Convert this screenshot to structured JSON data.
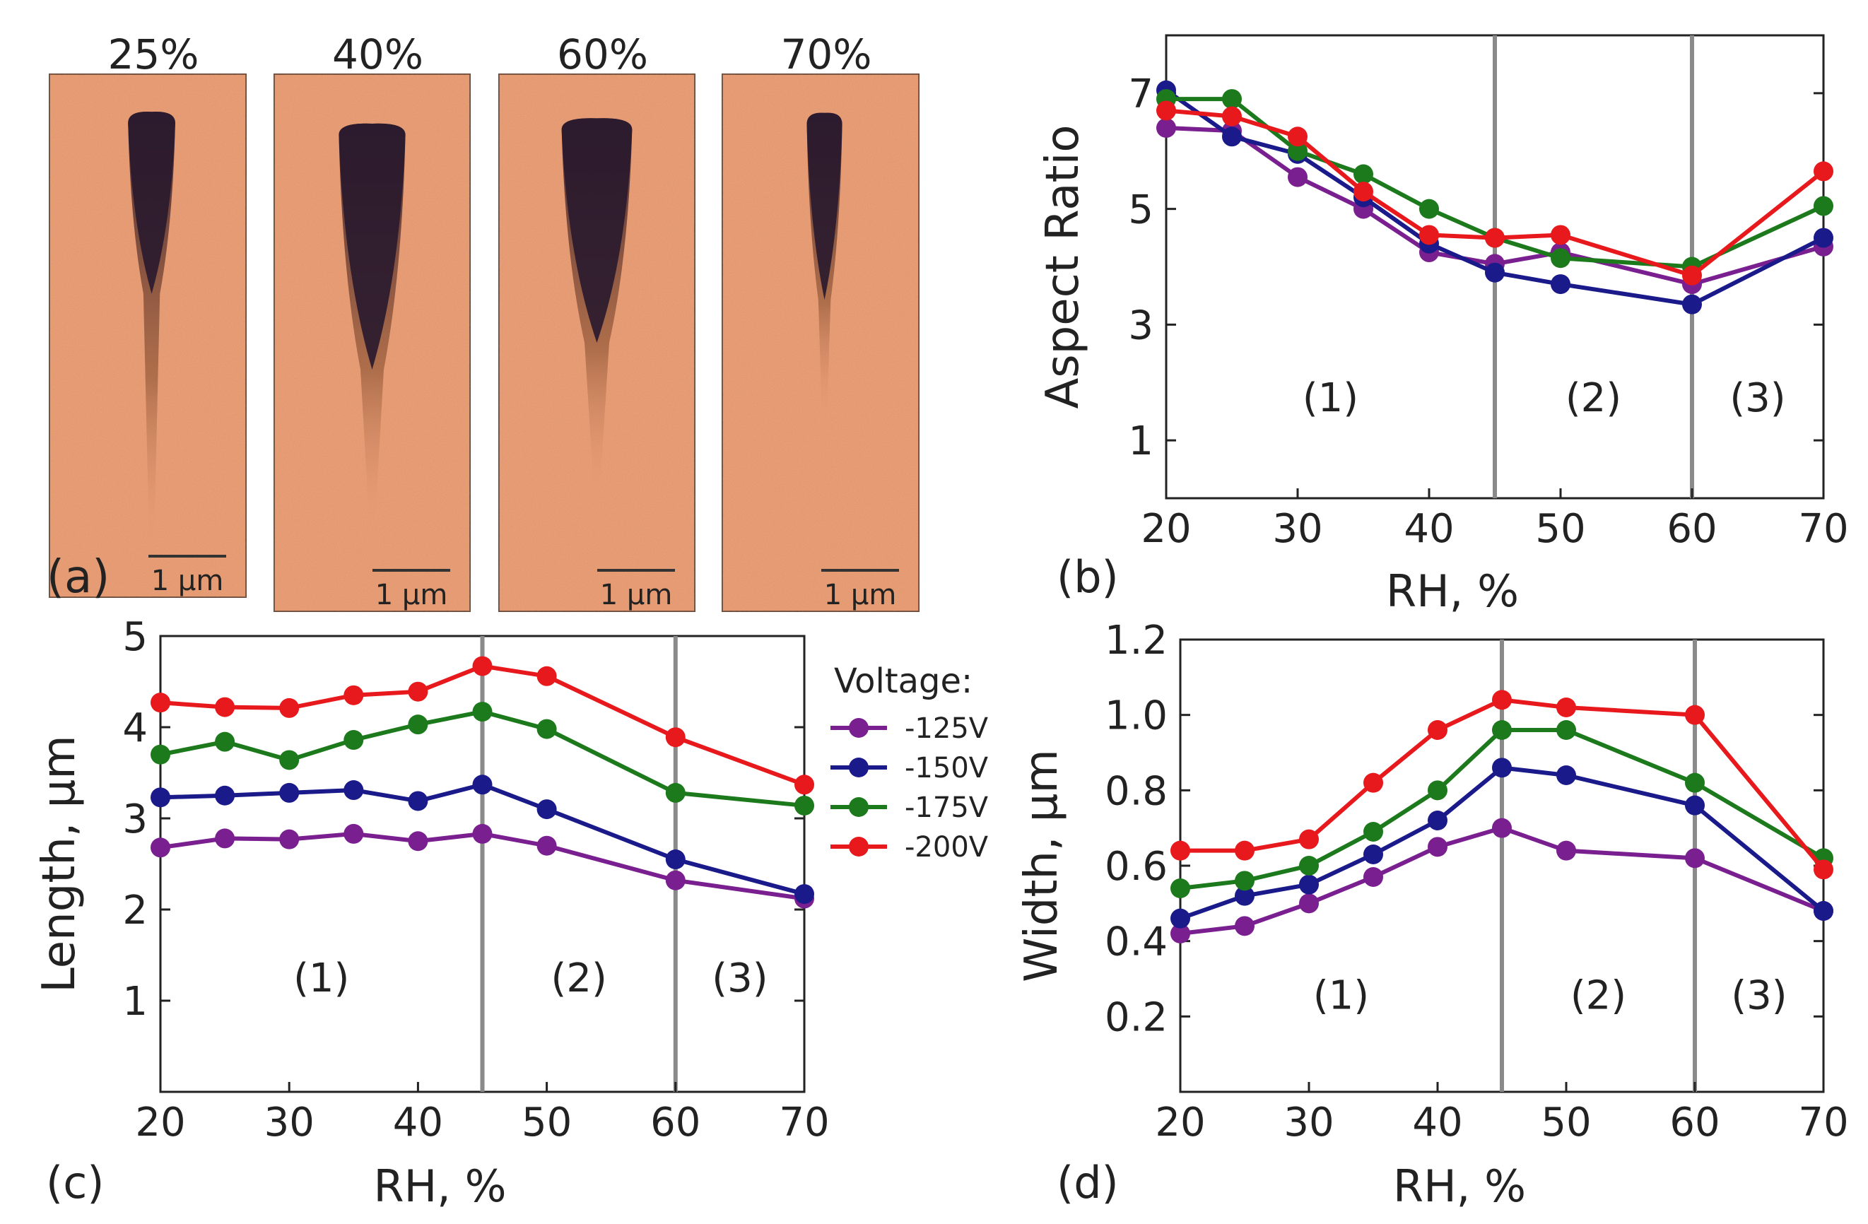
{
  "panel_a": {
    "label": "(a)",
    "scale_bar": "1 μm",
    "images": [
      {
        "title": "25%"
      },
      {
        "title": "40%"
      },
      {
        "title": "60%"
      },
      {
        "title": "70%"
      }
    ]
  },
  "colors": {
    "-125V": "#7a1f8f",
    "-150V": "#1a1a8a",
    "-175V": "#1c7a1c",
    "-200V": "#e8191c",
    "divider": "#8a8a8a",
    "afm_background": "#f2a27a",
    "afm_domain": "#2a1a2e"
  },
  "legend": {
    "title": "Voltage:",
    "entries": [
      "-125V",
      "-150V",
      "-175V",
      "-200V"
    ]
  },
  "chart_data": [
    {
      "id": "b",
      "type": "line",
      "panel_label": "(b)",
      "xlabel": "RH, %",
      "ylabel": "Aspect Ratio",
      "xlim": [
        20,
        70
      ],
      "ylim": [
        0,
        8
      ],
      "xticks": [
        20,
        30,
        40,
        50,
        60,
        70
      ],
      "yticks": [
        1,
        3,
        5,
        7
      ],
      "dividers": [
        45,
        60
      ],
      "regions": [
        {
          "label": "(1)",
          "x": 32.5,
          "y": 1.5
        },
        {
          "label": "(2)",
          "x": 52.5,
          "y": 1.5
        },
        {
          "label": "(3)",
          "x": 65,
          "y": 1.5
        }
      ],
      "x": [
        20,
        25,
        30,
        35,
        40,
        45,
        50,
        60,
        70
      ],
      "series": [
        {
          "name": "-125V",
          "values": [
            6.4,
            6.35,
            5.55,
            5.0,
            4.25,
            4.05,
            4.25,
            3.7,
            4.35
          ]
        },
        {
          "name": "-150V",
          "values": [
            7.05,
            6.25,
            5.95,
            5.2,
            4.4,
            3.9,
            3.7,
            3.35,
            4.5
          ]
        },
        {
          "name": "-175V",
          "values": [
            6.9,
            6.9,
            6.0,
            5.6,
            5.0,
            4.5,
            4.15,
            4.0,
            5.05
          ]
        },
        {
          "name": "-200V",
          "values": [
            6.7,
            6.6,
            6.25,
            5.3,
            4.55,
            4.5,
            4.55,
            3.85,
            5.65
          ]
        }
      ]
    },
    {
      "id": "c",
      "type": "line",
      "panel_label": "(c)",
      "xlabel": "RH, %",
      "ylabel": "Length, μm",
      "xlim": [
        20,
        70
      ],
      "ylim": [
        0,
        5
      ],
      "xticks": [
        20,
        30,
        40,
        50,
        60,
        70
      ],
      "yticks": [
        1,
        2,
        3,
        4,
        5
      ],
      "dividers": [
        45,
        60
      ],
      "regions": [
        {
          "label": "(1)",
          "x": 32.5,
          "y": 1.1
        },
        {
          "label": "(2)",
          "x": 52.5,
          "y": 1.1
        },
        {
          "label": "(3)",
          "x": 65,
          "y": 1.1
        }
      ],
      "x": [
        20,
        25,
        30,
        35,
        40,
        45,
        50,
        60,
        70
      ],
      "series": [
        {
          "name": "-125V",
          "values": [
            2.68,
            2.78,
            2.77,
            2.83,
            2.75,
            2.83,
            2.7,
            2.32,
            2.12
          ]
        },
        {
          "name": "-150V",
          "values": [
            3.23,
            3.25,
            3.28,
            3.31,
            3.19,
            3.37,
            3.1,
            2.55,
            2.17
          ]
        },
        {
          "name": "-175V",
          "values": [
            3.7,
            3.84,
            3.64,
            3.86,
            4.03,
            4.17,
            3.98,
            3.28,
            3.14
          ]
        },
        {
          "name": "-200V",
          "values": [
            4.27,
            4.22,
            4.21,
            4.35,
            4.39,
            4.67,
            4.56,
            3.89,
            3.37
          ]
        }
      ]
    },
    {
      "id": "d",
      "type": "line",
      "panel_label": "(d)",
      "xlabel": "RH, %",
      "ylabel": "Width, μm",
      "xlim": [
        20,
        70
      ],
      "ylim": [
        0.0,
        1.2
      ],
      "xticks": [
        20,
        30,
        40,
        50,
        60,
        70
      ],
      "yticks": [
        0.2,
        0.4,
        0.6,
        0.8,
        1.0,
        1.2
      ],
      "ytick_labels": [
        "0.2",
        "0.4",
        "0.6",
        "0.8",
        "1.0",
        "1.2"
      ],
      "dividers": [
        45,
        60
      ],
      "regions": [
        {
          "label": "(1)",
          "x": 32.5,
          "y": 0.22
        },
        {
          "label": "(2)",
          "x": 52.5,
          "y": 0.22
        },
        {
          "label": "(3)",
          "x": 65,
          "y": 0.22
        }
      ],
      "x": [
        20,
        25,
        30,
        35,
        40,
        45,
        50,
        60,
        70
      ],
      "series": [
        {
          "name": "-125V",
          "values": [
            0.42,
            0.44,
            0.5,
            0.57,
            0.65,
            0.7,
            0.64,
            0.62,
            0.48
          ]
        },
        {
          "name": "-150V",
          "values": [
            0.46,
            0.52,
            0.55,
            0.63,
            0.72,
            0.86,
            0.84,
            0.76,
            0.48
          ]
        },
        {
          "name": "-175V",
          "values": [
            0.54,
            0.56,
            0.6,
            0.69,
            0.8,
            0.96,
            0.96,
            0.82,
            0.62
          ]
        },
        {
          "name": "-200V",
          "values": [
            0.64,
            0.64,
            0.67,
            0.82,
            0.96,
            1.04,
            1.02,
            1.0,
            0.59
          ]
        }
      ]
    }
  ]
}
